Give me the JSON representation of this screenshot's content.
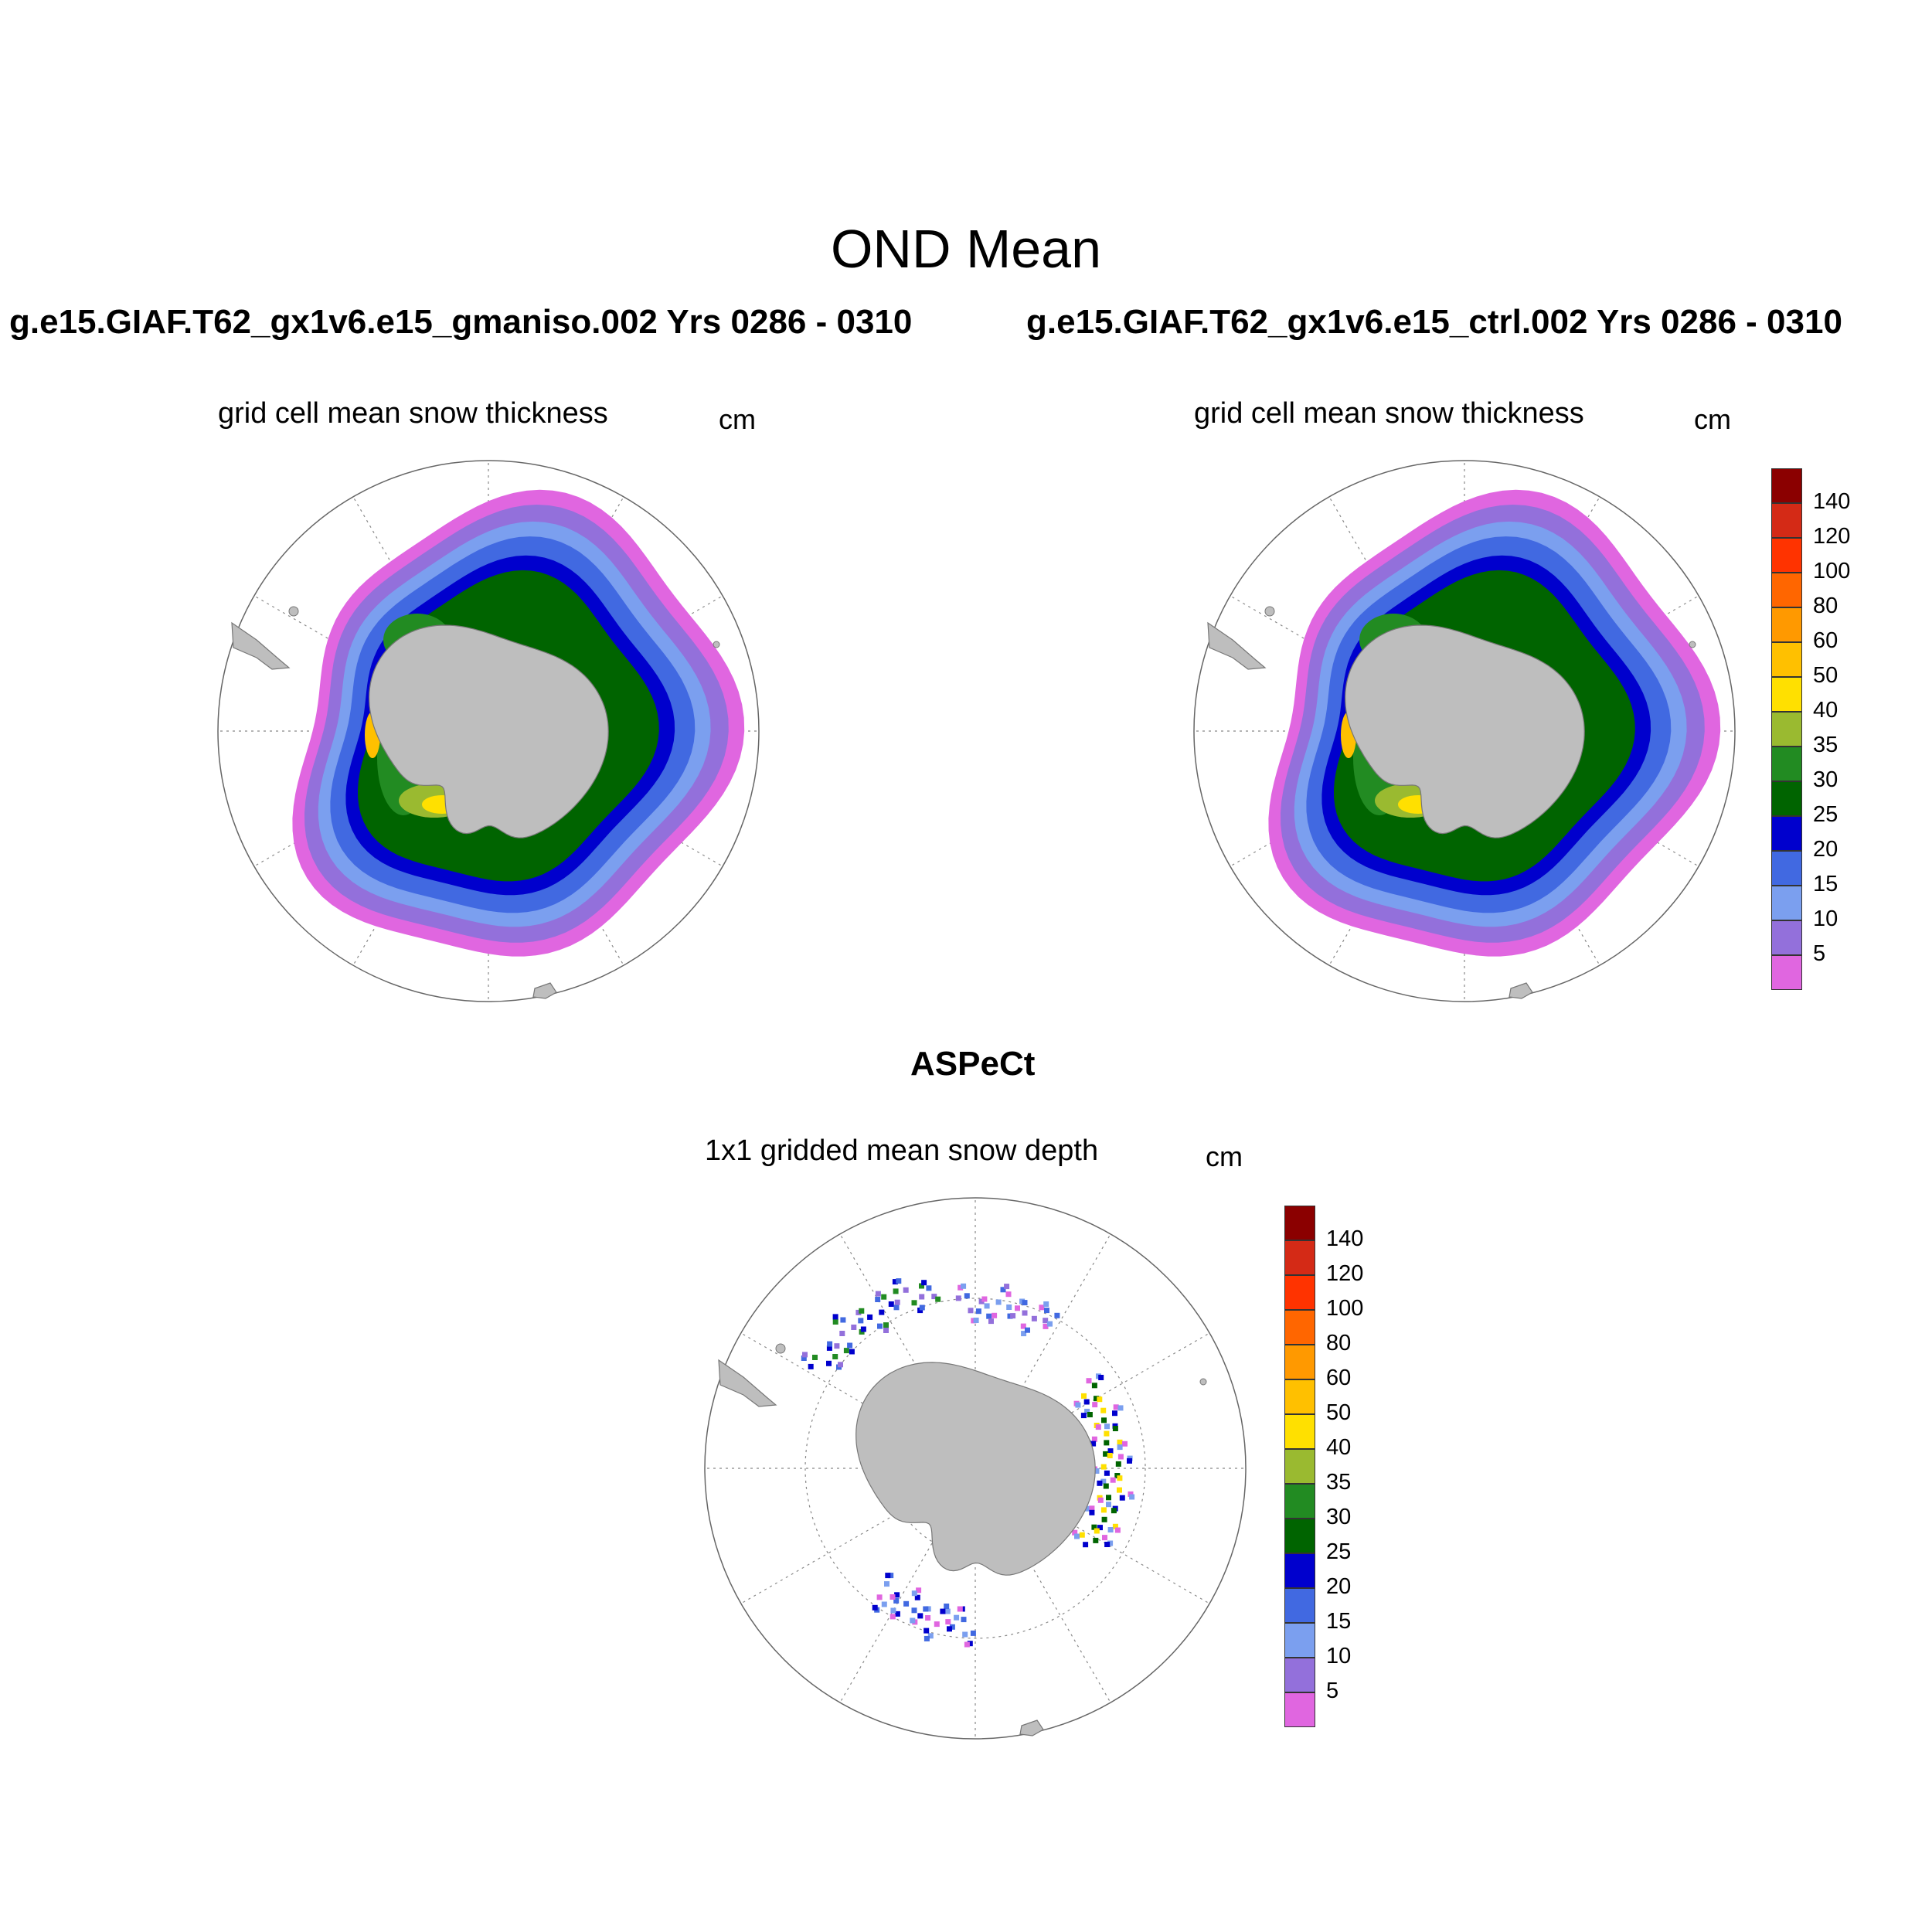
{
  "figure": {
    "title": "OND Mean"
  },
  "panels": [
    {
      "case_title": "g.e15.GIAF.T62_gx1v6.e15_gmaniso.002  Yrs 0286 - 0310",
      "subtitle": "grid cell mean snow thickness",
      "units": "cm",
      "field": "model"
    },
    {
      "case_title": "g.e15.GIAF.T62_gx1v6.e15_ctrl.002  Yrs 0286 - 0310",
      "subtitle": "grid cell mean snow thickness",
      "units": "cm",
      "field": "model"
    },
    {
      "case_title": "ASPeCt",
      "subtitle": "1x1 gridded mean snow depth",
      "units": "cm",
      "field": "observed"
    }
  ],
  "colorbar": {
    "labels": [
      "140",
      "120",
      "100",
      "80",
      "60",
      "50",
      "40",
      "35",
      "30",
      "25",
      "20",
      "15",
      "10",
      "5"
    ],
    "colors": [
      "#8b0000",
      "#d42a16",
      "#ff3300",
      "#ff6600",
      "#ff9900",
      "#ffc000",
      "#ffe000",
      "#9aba30",
      "#228b22",
      "#006400",
      "#0000cd",
      "#4169e1",
      "#7b9fef",
      "#9370db",
      "#e066e0"
    ]
  },
  "map": {
    "projection": "south polar stereographic",
    "land_color": "#bebebe",
    "grid": "dotted lat/lon"
  }
}
